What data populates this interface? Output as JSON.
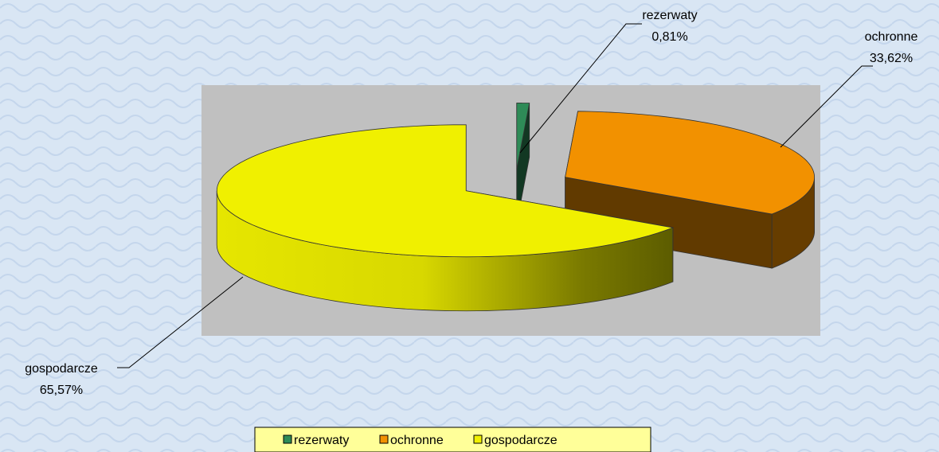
{
  "chart_data": {
    "type": "pie3d",
    "categories": [
      "rezerwaty",
      "ochronne",
      "gospodarcze"
    ],
    "values": [
      0.81,
      33.62,
      65.57
    ],
    "value_labels": [
      "0,81%",
      "33,62%",
      "65,57%"
    ],
    "colors": [
      "#2e8b57",
      "#f29100",
      "#f0f000"
    ],
    "legend": "bottom"
  }
}
